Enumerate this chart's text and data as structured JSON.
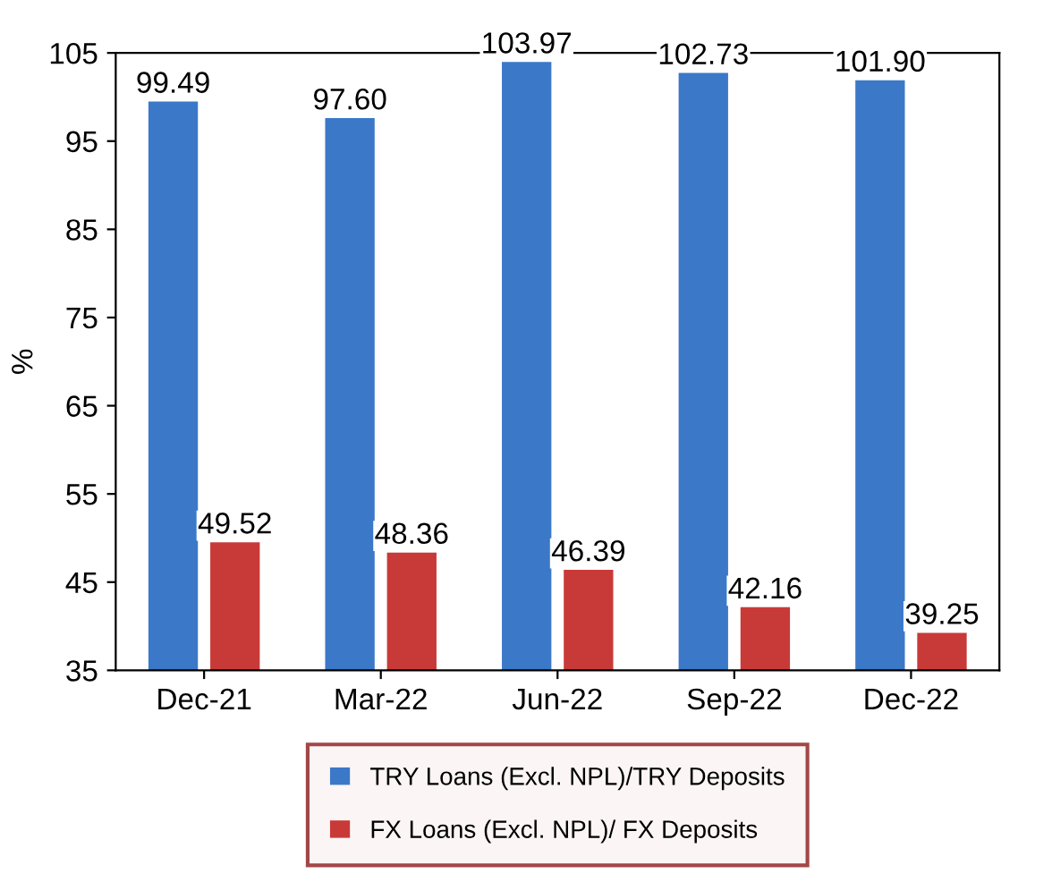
{
  "chart_data": {
    "type": "bar",
    "ylabel": "%",
    "categories": [
      "Dec-21",
      "Mar-22",
      "Jun-22",
      "Sep-22",
      "Dec-22"
    ],
    "series": [
      {
        "name": "TRY Loans (Excl. NPL)/TRY Deposits",
        "color": "#3b78c8",
        "values": [
          99.49,
          97.6,
          103.97,
          102.73,
          101.9
        ],
        "value_labels": [
          "99.49",
          "97.60",
          "103.97",
          "102.73",
          "101.90"
        ]
      },
      {
        "name": "FX Loans (Excl. NPL)/ FX Deposits",
        "color": "#c83a38",
        "values": [
          49.52,
          48.36,
          46.39,
          42.16,
          39.25
        ],
        "value_labels": [
          "49.52",
          "48.36",
          "46.39",
          "42.16",
          "39.25"
        ]
      }
    ],
    "ylim": [
      35,
      105
    ],
    "yticks": [
      35,
      45,
      55,
      65,
      75,
      85,
      95,
      105
    ],
    "legend": "bottom",
    "grid": false
  }
}
